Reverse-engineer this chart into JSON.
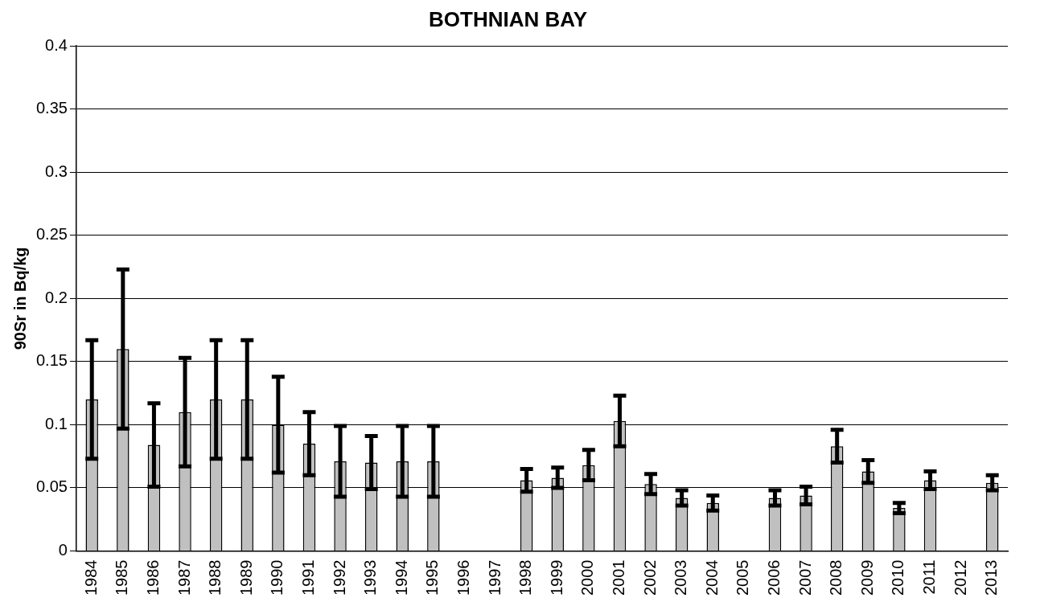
{
  "chart_data": {
    "type": "bar",
    "title": "BOTHNIAN BAY",
    "ylabel": "90Sr in Bq/kg",
    "categories": [
      "1984",
      "1985",
      "1986",
      "1987",
      "1988",
      "1989",
      "1990",
      "1991",
      "1992",
      "1993",
      "1994",
      "1995",
      "1996",
      "1997",
      "1998",
      "1999",
      "2000",
      "2001",
      "2002",
      "2003",
      "2004",
      "2005",
      "2006",
      "2007",
      "2008",
      "2009",
      "2010",
      "2011",
      "2012",
      "2013"
    ],
    "values": [
      0.12,
      0.16,
      0.084,
      0.11,
      0.12,
      0.12,
      0.1,
      0.085,
      0.071,
      0.07,
      0.071,
      0.071,
      null,
      null,
      0.056,
      0.058,
      0.068,
      0.103,
      0.053,
      0.042,
      0.038,
      null,
      0.042,
      0.044,
      0.083,
      0.063,
      0.034,
      0.056,
      null,
      0.054
    ],
    "errors": [
      0.047,
      0.063,
      0.033,
      0.043,
      0.047,
      0.047,
      0.038,
      0.025,
      0.028,
      0.021,
      0.028,
      0.028,
      null,
      null,
      0.009,
      0.008,
      0.012,
      0.02,
      0.008,
      0.006,
      0.006,
      null,
      0.006,
      0.007,
      0.013,
      0.009,
      0.004,
      0.007,
      null,
      0.006
    ],
    "color": "#c0c0c0",
    "ylim": [
      0,
      0.4
    ],
    "yticks": [
      0,
      0.05,
      0.1,
      0.15,
      0.2,
      0.25,
      0.3,
      0.35,
      0.4
    ],
    "grid": "y",
    "legend": false
  }
}
